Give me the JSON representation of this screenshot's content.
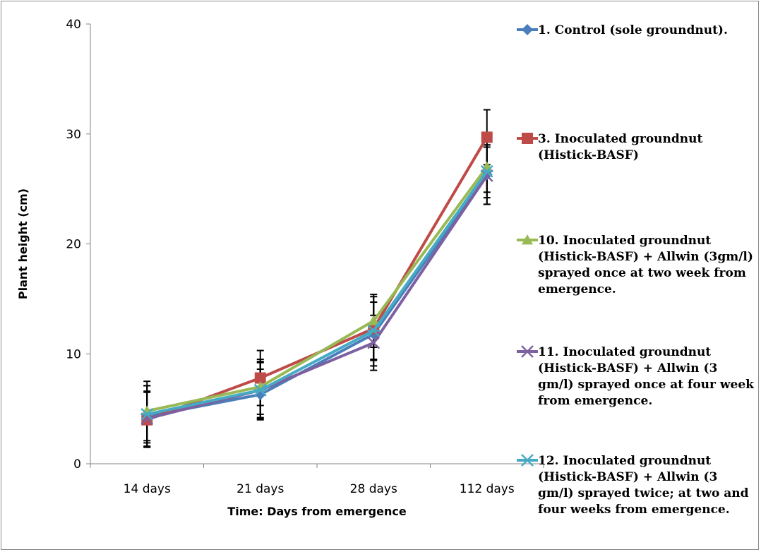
{
  "chart_data": {
    "type": "line",
    "xlabel": "Time: Days from emergence",
    "ylabel": "Plant height (cm)",
    "categories": [
      "14 days",
      "21 days",
      "28 days",
      "112 days"
    ],
    "ylim": [
      0,
      40
    ],
    "yticks": [
      0,
      10,
      20,
      30,
      40
    ],
    "grid": false,
    "legend_position": "right",
    "error_bars": true,
    "series": [
      {
        "name": "1. Control (sole groundnut).",
        "color": "#4a7ebb",
        "marker": "diamond",
        "values": [
          4.3,
          6.3,
          11.8,
          26.3
        ],
        "errors": [
          2.8,
          2.3,
          2.9,
          2.7
        ]
      },
      {
        "name": "3. Inoculated groundnut (Histick-BASF)",
        "color": "#be4b48",
        "marker": "square",
        "values": [
          4.0,
          7.8,
          12.3,
          29.7
        ],
        "errors": [
          2.5,
          2.5,
          2.9,
          2.5
        ]
      },
      {
        "name": "10. Inoculated groundnut (Histick-BASF) + Allwin (3gm/l) sprayed once at two week from emergence.",
        "color": "#98b954",
        "marker": "triangle",
        "values": [
          4.8,
          7.0,
          13.0,
          27.0
        ],
        "errors": [
          2.7,
          2.5,
          2.4,
          2.3
        ]
      },
      {
        "name": "11. Inoculated groundnut (Histick-BASF) + Allwin (3 gm/l) sprayed once at four week from emergence.",
        "color": "#7d60a0",
        "marker": "x",
        "values": [
          4.1,
          6.7,
          11.0,
          26.2
        ],
        "errors": [
          2.5,
          2.5,
          2.5,
          2.6
        ]
      },
      {
        "name": "12. Inoculated groundnut (Histick-BASF) + Allwin (3 gm/l) sprayed twice; at two and four weeks from emergence.",
        "color": "#46aac5",
        "marker": "star",
        "values": [
          4.5,
          6.7,
          12.1,
          26.6
        ],
        "errors": [
          2.6,
          2.6,
          2.6,
          2.4
        ]
      }
    ]
  }
}
